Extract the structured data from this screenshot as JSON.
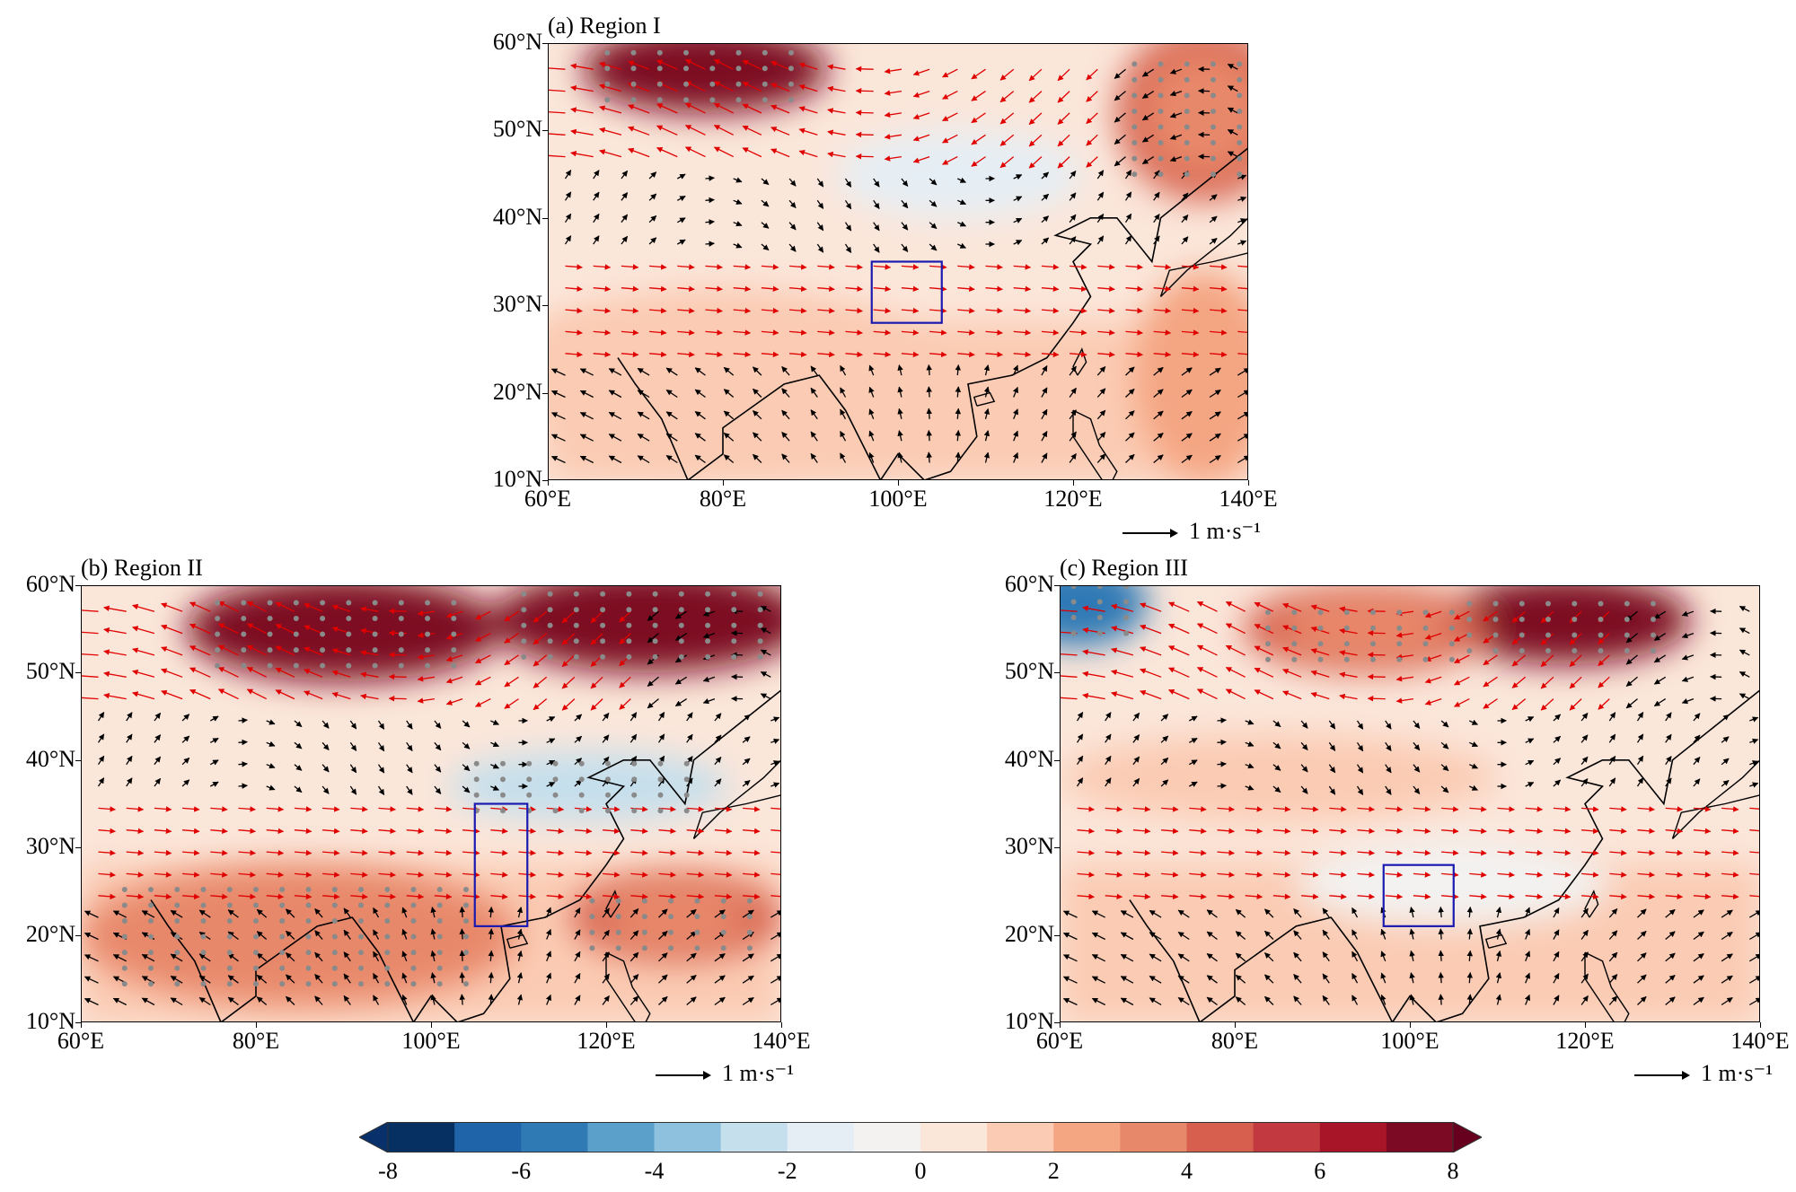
{
  "panels": [
    {
      "id": "a",
      "title": "(a) Region I",
      "lat_labels": [
        "60°N",
        "50°N",
        "40°N",
        "30°N",
        "20°N",
        "10°N"
      ],
      "lon_labels": [
        "60°E",
        "80°E",
        "100°E",
        "120°E",
        "140°E"
      ],
      "ref_vector_label": "1 m·s⁻¹",
      "box": {
        "lon": [
          97,
          105
        ],
        "lat": [
          28,
          35
        ]
      },
      "anomaly_blobs": [
        {
          "lon": 78,
          "lat": 57,
          "value": 8,
          "rx": 14,
          "ry": 5
        },
        {
          "lon": 135,
          "lat": 52,
          "value": 4,
          "rx": 10,
          "ry": 10
        },
        {
          "lon": 107,
          "lat": 45,
          "value": -1.5,
          "rx": 14,
          "ry": 5
        },
        {
          "lon": 135,
          "lat": 22,
          "value": 2,
          "rx": 8,
          "ry": 12
        },
        {
          "lon": 80,
          "lat": 22,
          "value": 1.5,
          "rx": 25,
          "ry": 10
        }
      ]
    },
    {
      "id": "b",
      "title": "(b) Region II",
      "lat_labels": [
        "60°N",
        "50°N",
        "40°N",
        "30°N",
        "20°N",
        "10°N"
      ],
      "lon_labels": [
        "60°E",
        "80°E",
        "100°E",
        "120°E",
        "140°E"
      ],
      "ref_vector_label": "1 m·s⁻¹",
      "box": {
        "lon": [
          105,
          111
        ],
        "lat": [
          21,
          35
        ]
      },
      "anomaly_blobs": [
        {
          "lon": 90,
          "lat": 55,
          "value": 8,
          "rx": 18,
          "ry": 6
        },
        {
          "lon": 125,
          "lat": 56,
          "value": 8,
          "rx": 18,
          "ry": 6
        },
        {
          "lon": 118,
          "lat": 37,
          "value": -3,
          "rx": 16,
          "ry": 4
        },
        {
          "lon": 85,
          "lat": 20,
          "value": 3,
          "rx": 25,
          "ry": 8
        },
        {
          "lon": 128,
          "lat": 22,
          "value": 4,
          "rx": 12,
          "ry": 5
        }
      ]
    },
    {
      "id": "c",
      "title": "(c) Region III",
      "lat_labels": [
        "60°N",
        "50°N",
        "40°N",
        "30°N",
        "20°N",
        "10°N"
      ],
      "lon_labels": [
        "60°E",
        "80°E",
        "100°E",
        "120°E",
        "140°E"
      ],
      "ref_vector_label": "1 m·s⁻¹",
      "box": {
        "lon": [
          97,
          105
        ],
        "lat": [
          21,
          28
        ]
      },
      "anomaly_blobs": [
        {
          "lon": 62,
          "lat": 58,
          "value": -6,
          "rx": 8,
          "ry": 5
        },
        {
          "lon": 118,
          "lat": 56,
          "value": 8,
          "rx": 14,
          "ry": 5
        },
        {
          "lon": 95,
          "lat": 55,
          "value": 4,
          "rx": 14,
          "ry": 5
        },
        {
          "lon": 105,
          "lat": 26,
          "value": -1,
          "rx": 18,
          "ry": 5
        },
        {
          "lon": 85,
          "lat": 38,
          "value": 1.5,
          "rx": 25,
          "ry": 5
        }
      ]
    }
  ],
  "colorbar": {
    "labels": [
      "-8",
      "-6",
      "-4",
      "-2",
      "0",
      "2",
      "4",
      "6",
      "8"
    ],
    "colors": [
      "#053061",
      "#1f63a8",
      "#2f79b5",
      "#5b9fcb",
      "#8ec1dd",
      "#c5dfec",
      "#e5eef4",
      "#f3f2f1",
      "#fbe6da",
      "#fbcbb3",
      "#f4a582",
      "#e8886b",
      "#d6604d",
      "#c23a3f",
      "#a81529",
      "#7d0a24"
    ],
    "extend_low": "#08306b",
    "extend_high": "#67001f"
  }
}
